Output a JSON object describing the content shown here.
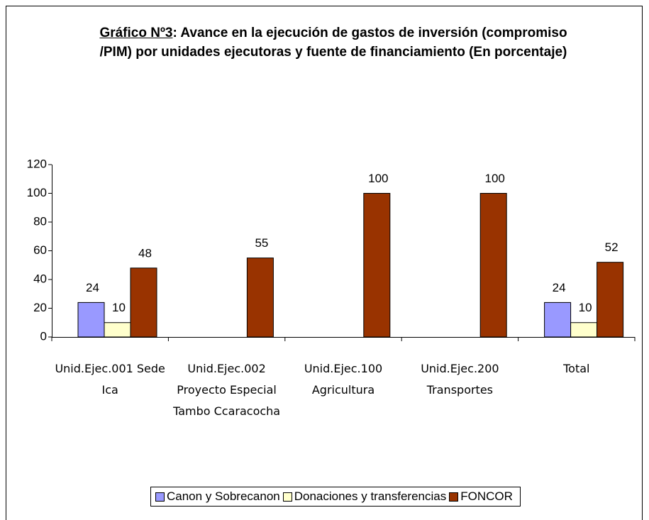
{
  "chart_data": {
    "type": "bar",
    "title_number": "Gráfico Nº3",
    "title": ": Avance en la ejecución de gastos de inversión (compromiso /PIM) por unidades ejecutoras y fuente de financiamiento (En porcentaje)",
    "categories": [
      "Unid.Ejec.001 Sede Ica",
      "Unid.Ejec.002 Proyecto Especial Tambo Ccaracocha",
      "Unid.Ejec.100 Agricultura",
      "Unid.Ejec.200 Transportes",
      "Total"
    ],
    "series": [
      {
        "name": "Canon y Sobrecanon",
        "color": "#9999ff",
        "values": [
          24,
          null,
          null,
          null,
          24
        ]
      },
      {
        "name": "Donaciones y transferencias",
        "color": "#ffffcc",
        "values": [
          10,
          null,
          null,
          null,
          10
        ]
      },
      {
        "name": "FONCOR",
        "color": "#993300",
        "values": [
          48,
          55,
          100,
          100,
          52
        ]
      }
    ],
    "ylim": [
      0,
      120
    ],
    "yticks": [
      0,
      20,
      40,
      60,
      80,
      100,
      120
    ],
    "grid": false,
    "legend": "bottom"
  }
}
